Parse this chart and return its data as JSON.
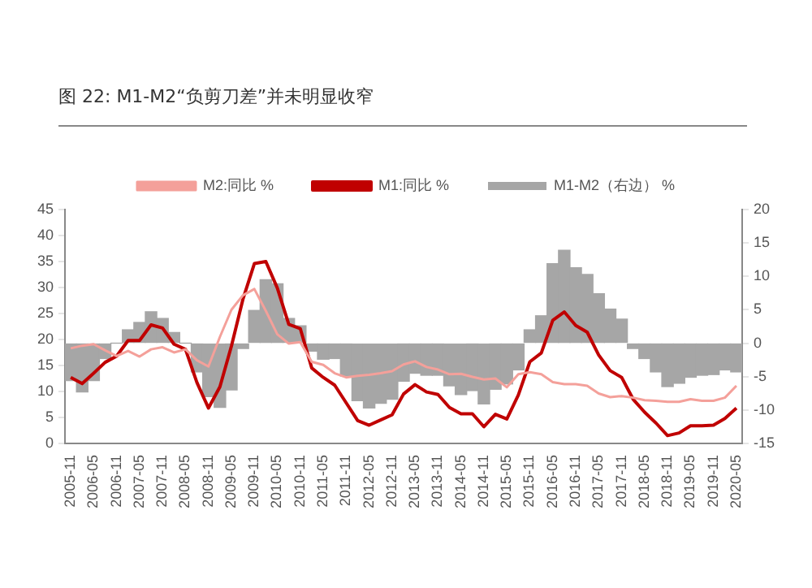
{
  "chart_data": {
    "type": "line",
    "title": "图 22:  M1-M2“负剪刀差”并未明显收窄",
    "categories": [
      "2005-11",
      null,
      "2006-05",
      null,
      "2006-11",
      null,
      "2007-05",
      null,
      "2007-11",
      null,
      "2008-05",
      null,
      "2008-11",
      null,
      "2009-05",
      null,
      "2009-11",
      null,
      "2010-05",
      null,
      "2010-11",
      null,
      "2011-05",
      null,
      "2011-11",
      null,
      "2012-05",
      null,
      "2012-11",
      null,
      "2013-05",
      null,
      "2013-11",
      null,
      "2014-05",
      null,
      "2014-11",
      null,
      "2015-05",
      null,
      "2015-11",
      null,
      "2016-05",
      null,
      "2016-11",
      null,
      "2017-05",
      null,
      "2017-11",
      null,
      "2018-05",
      null,
      "2018-11",
      null,
      "2019-05",
      null,
      "2019-11",
      null,
      "2020-05"
    ],
    "series": [
      {
        "name": "M1-M2（右边） %",
        "type": "bar",
        "axis": "y2",
        "color": "#a6a6a6",
        "values": [
          -5.6,
          -7.3,
          -5.6,
          -2.3,
          0,
          2,
          3.1,
          4.7,
          3.7,
          1.6,
          0,
          -4.3,
          -8,
          -9.6,
          -7,
          -0.8,
          4.9,
          9.5,
          8.9,
          3.7,
          2.6,
          -1.2,
          -2.4,
          -2.3,
          -4.9,
          -8.6,
          -9.7,
          -9,
          -8.4,
          -5.7,
          -4.5,
          -4.8,
          -4.8,
          -6.4,
          -7.7,
          -7.1,
          -9.1,
          -6.9,
          -6.1,
          -4,
          2,
          4.1,
          11.9,
          13.9,
          11.3,
          10.3,
          7.4,
          5.1,
          3.6,
          -0.8,
          -2.3,
          -4.3,
          -6.5,
          -6,
          -5.1,
          -4.8,
          -4.7,
          -4,
          -4.3
        ]
      },
      {
        "name": "M1:同比 %",
        "color": "#c00000",
        "values": [
          12.7,
          11.5,
          13.5,
          15.6,
          16.8,
          19.8,
          19.8,
          22.8,
          22.2,
          19.1,
          18.1,
          11.7,
          6.8,
          10.9,
          18.7,
          27.7,
          34.6,
          35.0,
          29.9,
          22.9,
          22.1,
          14.5,
          12.7,
          11.2,
          7.8,
          4.4,
          3.5,
          4.5,
          5.5,
          9.5,
          11.3,
          9.9,
          9.4,
          6.9,
          5.7,
          5.7,
          3.2,
          5.6,
          4.7,
          9.3,
          15.7,
          17.4,
          23.7,
          25.3,
          22.7,
          21.4,
          17.0,
          14.0,
          12.7,
          8.5,
          6.0,
          3.9,
          1.5,
          2.0,
          3.4,
          3.4,
          3.5,
          4.8,
          6.8
        ]
      },
      {
        "name": "M2:同比 %",
        "color": "#f4a09a",
        "values": [
          18.3,
          18.8,
          19.1,
          17.9,
          16.8,
          17.8,
          16.7,
          18.1,
          18.5,
          17.5,
          18.1,
          16.0,
          14.8,
          20.5,
          25.7,
          28.5,
          29.7,
          25.5,
          21.0,
          19.2,
          19.5,
          15.7,
          15.1,
          13.5,
          12.7,
          13.0,
          13.2,
          13.5,
          13.9,
          15.2,
          15.8,
          14.7,
          14.2,
          13.3,
          13.4,
          12.8,
          12.3,
          12.5,
          10.8,
          13.3,
          13.7,
          13.3,
          11.8,
          11.4,
          11.4,
          11.1,
          9.6,
          8.9,
          9.1,
          8.8,
          8.3,
          8.2,
          8.0,
          8.0,
          8.5,
          8.2,
          8.2,
          8.8,
          11.1
        ]
      }
    ],
    "ylim": [
      0,
      45
    ],
    "yticks": [
      0,
      5,
      10,
      15,
      20,
      25,
      30,
      35,
      40,
      45
    ],
    "y2lim": [
      -15,
      20
    ],
    "y2ticks": [
      -15,
      -10,
      -5,
      0,
      5,
      10,
      15,
      20
    ],
    "legend": "top",
    "grid": false,
    "marker": "none",
    "line_style": "solid"
  }
}
